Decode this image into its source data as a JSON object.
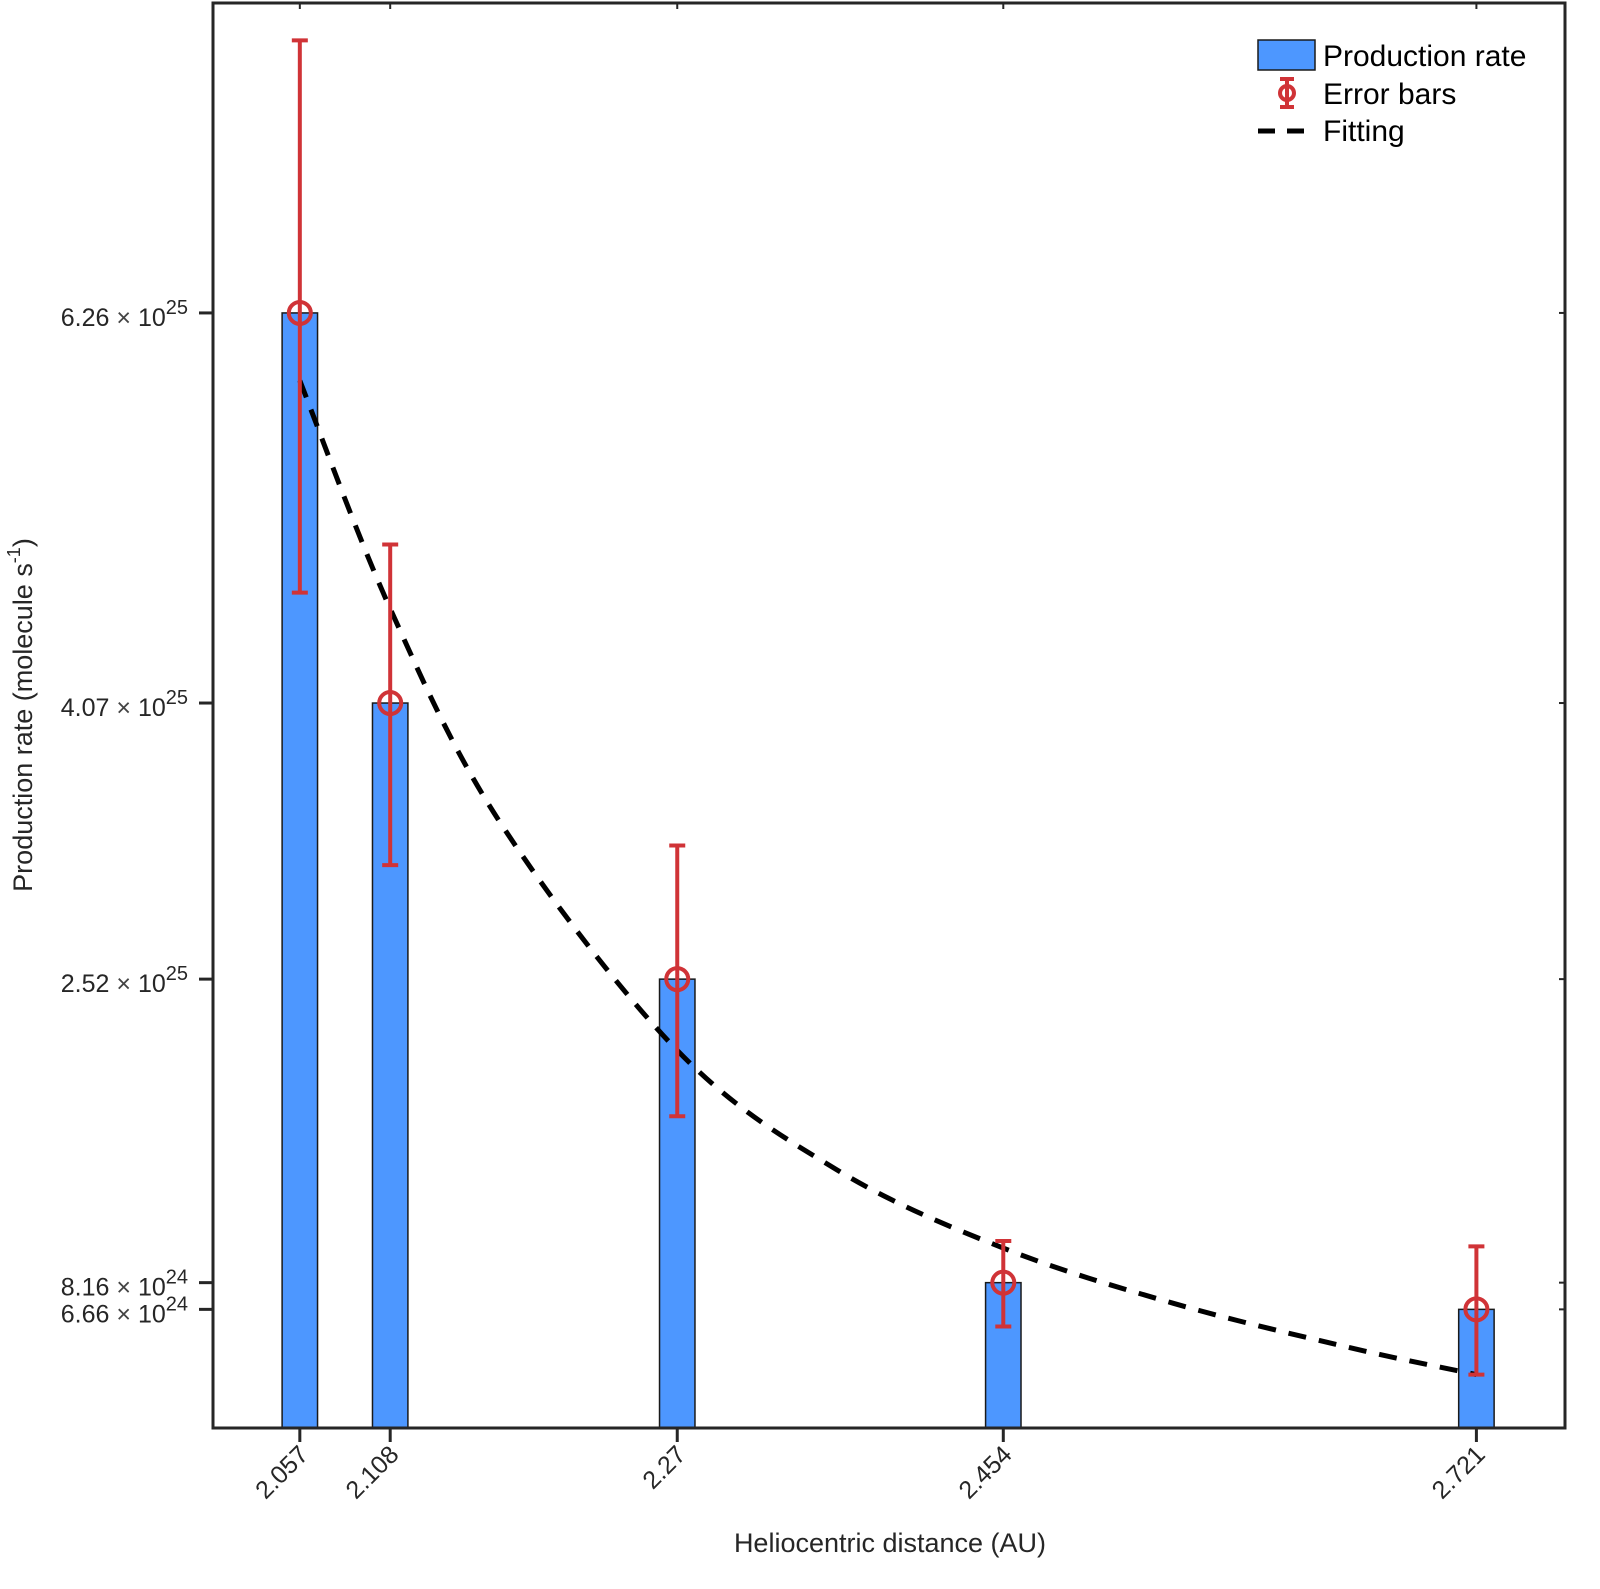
{
  "chart_data": {
    "type": "bar",
    "title": "",
    "xlabel": "Heliocentric distance (AU)",
    "ylabel": "Production rate (molecule s^-1)",
    "ylabel_parts": {
      "main": "Production rate (molecule s",
      "sup": "-1",
      "close": ")"
    },
    "xlim": [
      2.008,
      2.771
    ],
    "ylim": [
      0,
      8e+25
    ],
    "grid": false,
    "x": [
      2.057,
      2.108,
      2.27,
      2.454,
      2.721
    ],
    "x_tick_labels": [
      "2.057",
      "2.108",
      "2.27",
      "2.454",
      "2.721"
    ],
    "y_ticks": [
      {
        "value": 6.26e+25,
        "mantissa": "6.26",
        "times": "×",
        "base": "10",
        "exp": "25"
      },
      {
        "value": 4.07e+25,
        "mantissa": "4.07",
        "times": "×",
        "base": "10",
        "exp": "25"
      },
      {
        "value": 2.52e+25,
        "mantissa": "2.52",
        "times": "×",
        "base": "10",
        "exp": "25"
      },
      {
        "value": 8.16e+24,
        "mantissa": "8.16",
        "times": "×",
        "base": "10",
        "exp": "24"
      },
      {
        "value": 6.66e+24,
        "mantissa": "6.66",
        "times": "×",
        "base": "10",
        "exp": "24"
      }
    ],
    "series": [
      {
        "name": "Production rate",
        "kind": "bar",
        "color": "#4d97ff",
        "values": [
          6.26e+25,
          4.07e+25,
          2.52e+25,
          8.16e+24,
          6.66e+24
        ],
        "bar_width_au": 0.02
      },
      {
        "name": "Error bars",
        "kind": "errorbar",
        "color": "#d03337",
        "values": [
          6.26e+25,
          4.07e+25,
          2.52e+25,
          8.16e+24,
          6.66e+24
        ],
        "upper": [
          7.79e+25,
          4.96e+25,
          3.27e+25,
          1.05e+25,
          1.02e+25
        ],
        "lower": [
          4.69e+25,
          3.16e+25,
          1.75e+25,
          5.7e+24,
          3e+24
        ]
      },
      {
        "name": "Fitting",
        "kind": "line",
        "style": "dashed",
        "color": "#000000",
        "x": [
          2.057,
          2.108,
          2.17,
          2.27,
          2.36,
          2.454,
          2.55,
          2.65,
          2.721
        ],
        "values": [
          5.88e+25,
          4.6e+25,
          3.4e+25,
          2.12e+25,
          1.45e+25,
          1.01e+25,
          7e+24,
          4.5e+24,
          3e+24
        ]
      }
    ],
    "legend": {
      "position": "top-right",
      "entries": [
        "Production rate",
        "Error bars",
        "Fitting"
      ]
    }
  }
}
